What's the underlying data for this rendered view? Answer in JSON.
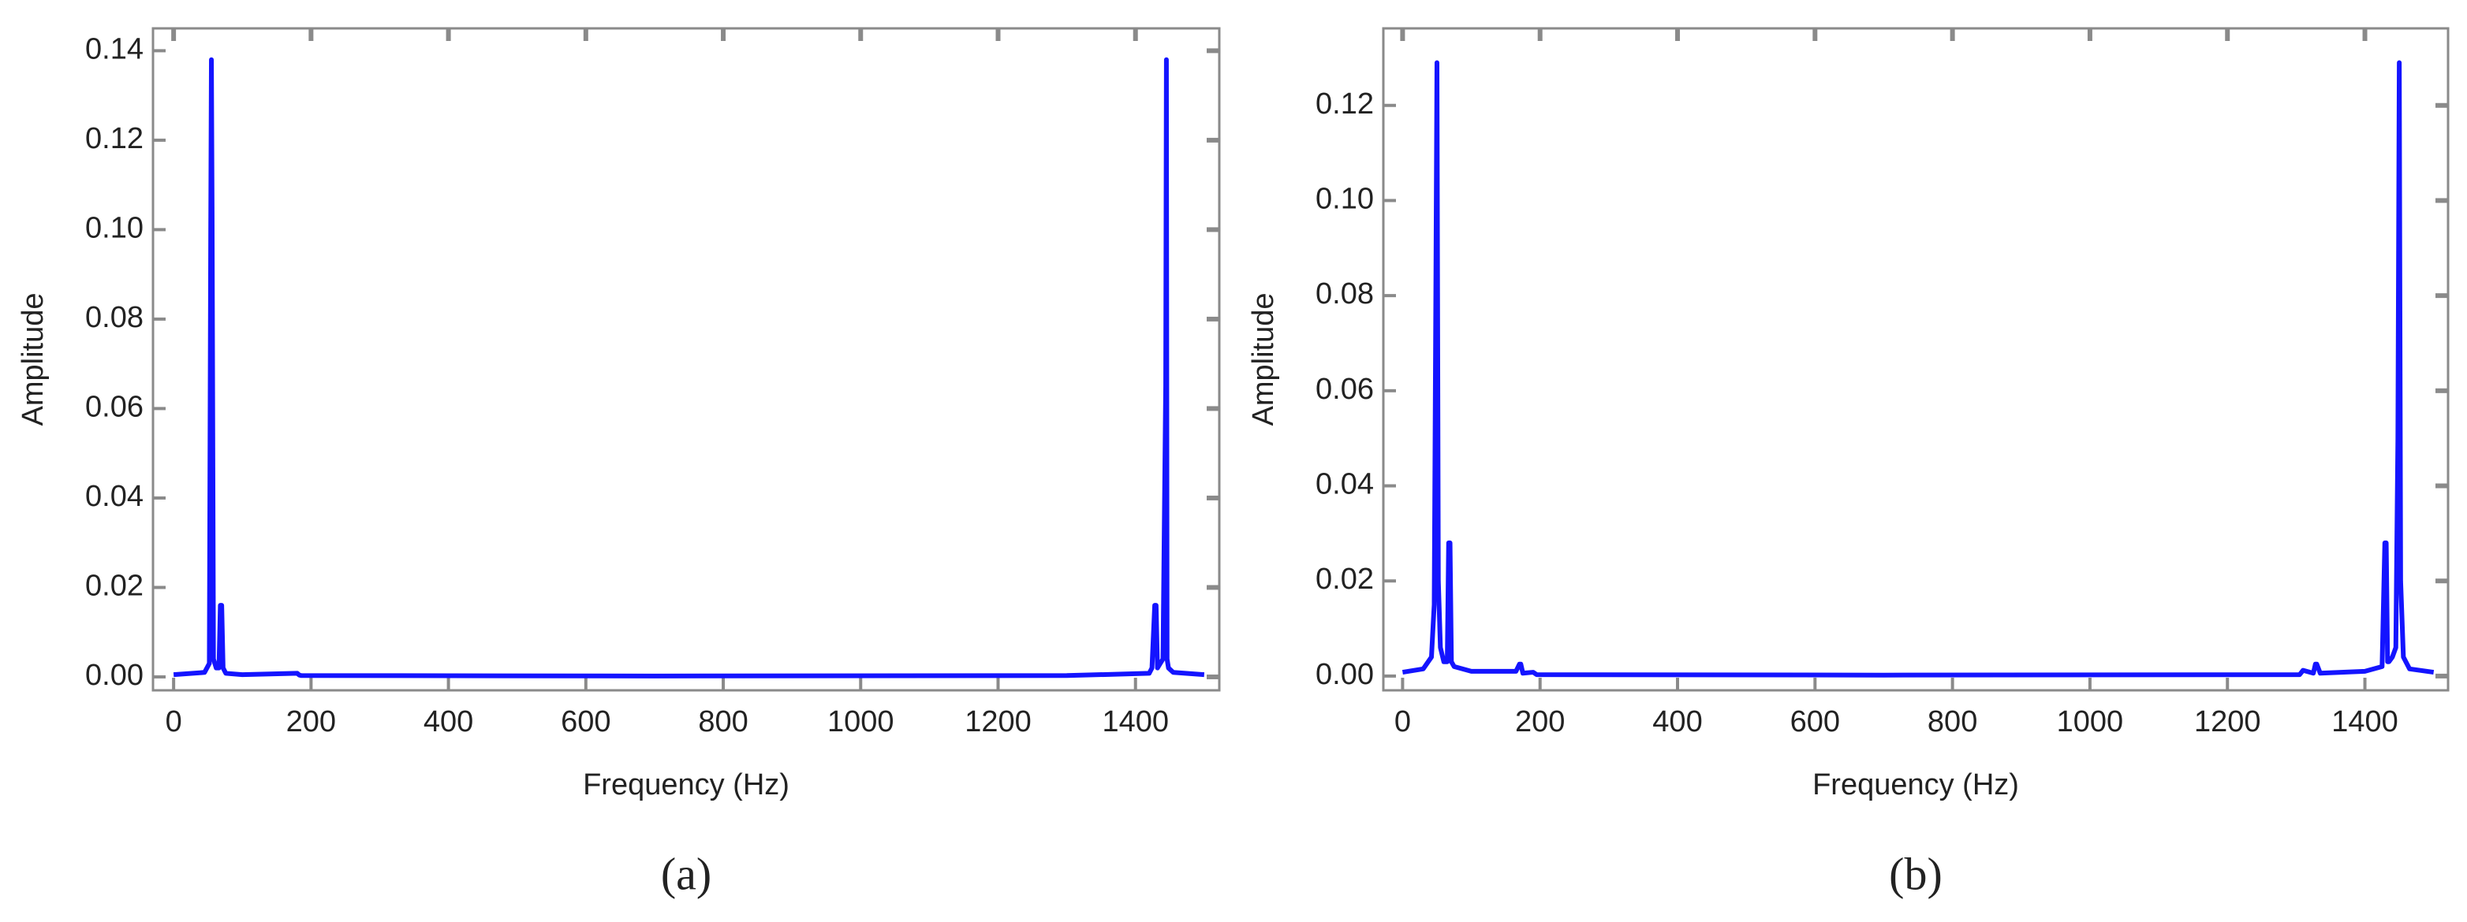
{
  "chart_data": [
    {
      "type": "line",
      "caption": "(a)",
      "x_label": "Frequency (Hz)",
      "y_label": "Amplitude",
      "color": "#1414ff",
      "x": [
        0,
        45,
        52,
        54,
        55,
        56,
        58,
        62,
        66,
        68,
        70,
        72,
        76,
        100,
        180,
        183,
        186,
        700,
        1300,
        1420,
        1424,
        1428,
        1430,
        1432,
        1436,
        1440,
        1444,
        1445,
        1446,
        1448,
        1455,
        1500
      ],
      "values": [
        0.0005,
        0.001,
        0.003,
        0.1,
        0.138,
        0.104,
        0.004,
        0.002,
        0.002,
        0.016,
        0.016,
        0.002,
        0.0008,
        0.0005,
        0.0008,
        0.0004,
        0.0003,
        0.0002,
        0.0003,
        0.0008,
        0.002,
        0.016,
        0.016,
        0.002,
        0.003,
        0.004,
        0.065,
        0.138,
        0.004,
        0.002,
        0.001,
        0.0005
      ],
      "xlim": [
        -30,
        1522
      ],
      "ylim": [
        -0.003,
        0.145
      ],
      "xticks": [
        0,
        200,
        400,
        600,
        800,
        1000,
        1200,
        1400
      ],
      "yticks": [
        {
          "value": 0,
          "label": "0.00"
        },
        {
          "value": 0.02,
          "label": "0.02"
        },
        {
          "value": 0.04,
          "label": "0.04"
        },
        {
          "value": 0.06,
          "label": "0.06"
        },
        {
          "value": 0.08,
          "label": "0.08"
        },
        {
          "value": 0.1,
          "label": "0.10"
        },
        {
          "value": 0.12,
          "label": "0.12"
        },
        {
          "value": 0.14,
          "label": "0.14"
        }
      ]
    },
    {
      "type": "line",
      "caption": "(b)",
      "x_label": "Frequency (Hz)",
      "y_label": "Amplitude",
      "color": "#1414ff",
      "x": [
        0,
        30,
        42,
        46,
        48,
        50,
        52,
        55,
        60,
        65,
        67,
        69,
        71,
        75,
        100,
        165,
        170,
        172,
        175,
        190,
        195,
        700,
        1305,
        1310,
        1325,
        1328,
        1330,
        1335,
        1400,
        1425,
        1429,
        1431,
        1433,
        1435,
        1440,
        1445,
        1448,
        1450,
        1452,
        1456,
        1465,
        1500
      ],
      "values": [
        0.0008,
        0.0015,
        0.004,
        0.015,
        0.07,
        0.129,
        0.02,
        0.006,
        0.003,
        0.003,
        0.028,
        0.028,
        0.003,
        0.002,
        0.001,
        0.001,
        0.0025,
        0.0025,
        0.0006,
        0.0008,
        0.0003,
        0.0002,
        0.0003,
        0.0012,
        0.0006,
        0.0025,
        0.0025,
        0.0006,
        0.001,
        0.002,
        0.028,
        0.028,
        0.003,
        0.003,
        0.004,
        0.006,
        0.05,
        0.129,
        0.02,
        0.004,
        0.0015,
        0.0008
      ],
      "xlim": [
        -28,
        1521
      ],
      "ylim": [
        -0.003,
        0.1362
      ],
      "xticks": [
        0,
        200,
        400,
        600,
        800,
        1000,
        1200,
        1400
      ],
      "yticks": [
        {
          "value": 0,
          "label": "0.00"
        },
        {
          "value": 0.02,
          "label": "0.02"
        },
        {
          "value": 0.04,
          "label": "0.04"
        },
        {
          "value": 0.06,
          "label": "0.06"
        },
        {
          "value": 0.08,
          "label": "0.08"
        },
        {
          "value": 0.1,
          "label": "0.10"
        },
        {
          "value": 0.12,
          "label": "0.12"
        }
      ]
    }
  ]
}
